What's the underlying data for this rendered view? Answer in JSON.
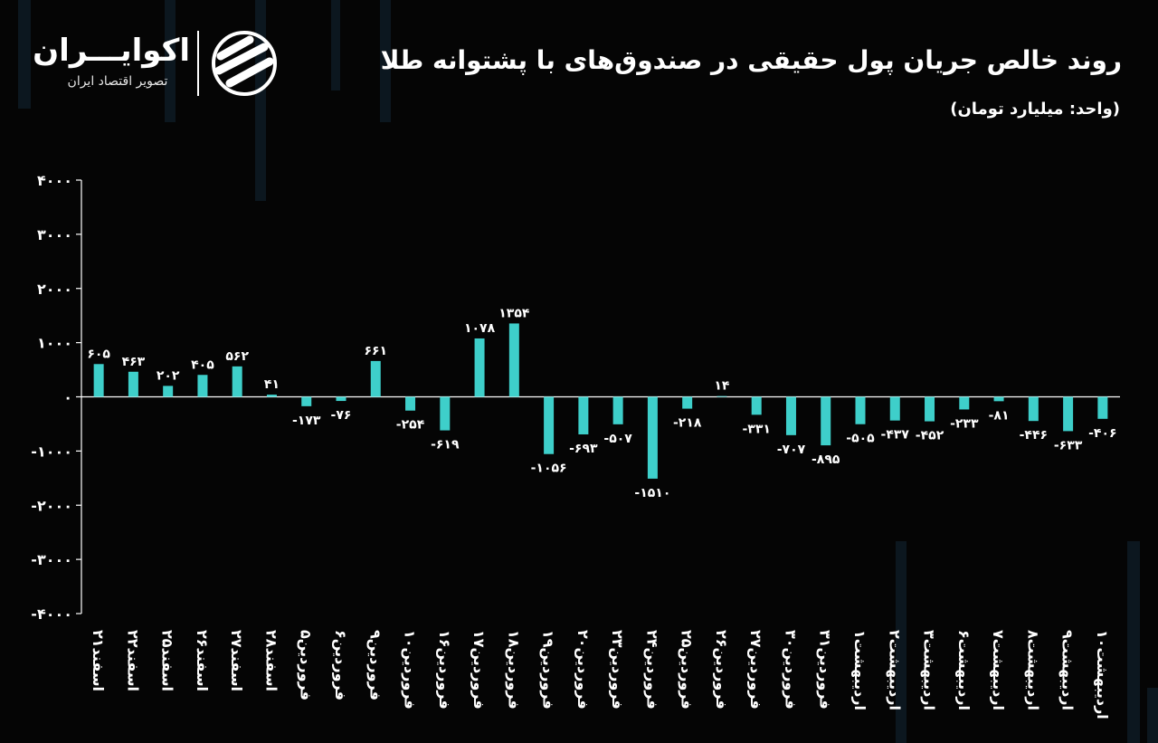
{
  "header": {
    "title": "روند خالص جریان پول حقیقی در صندوق‌های با پشتوانه طلا",
    "unit": "(واحد: میلیارد تومان)"
  },
  "brand": {
    "name": "اکوایـــران",
    "tagline": "تصویر اقتصاد ایران"
  },
  "colors": {
    "background": "#050505",
    "bar": "#3ecfca",
    "axis": "#ffffff",
    "text": "#ffffff"
  },
  "chart_data": {
    "type": "bar",
    "title": "روند خالص جریان پول حقیقی در صندوق‌های با پشتوانه طلا",
    "ylabel": "",
    "xlabel": "",
    "ylim": [
      -4000,
      4000
    ],
    "y_ticks": [
      {
        "value": 4000,
        "label": "۴۰۰۰"
      },
      {
        "value": 3000,
        "label": "۳۰۰۰"
      },
      {
        "value": 2000,
        "label": "۲۰۰۰"
      },
      {
        "value": 1000,
        "label": "۱۰۰۰"
      },
      {
        "value": 0,
        "label": "۰"
      },
      {
        "value": -1000,
        "label": "-۱۰۰۰"
      },
      {
        "value": -2000,
        "label": "-۲۰۰۰"
      },
      {
        "value": -3000,
        "label": "-۳۰۰۰"
      },
      {
        "value": -4000,
        "label": "-۴۰۰۰"
      }
    ],
    "categories": [
      "اسفند۲۱",
      "اسفند۲۲",
      "اسفند۲۵",
      "اسفند۲۶",
      "اسفند۲۷",
      "اسفند۲۸",
      "فروردین۵",
      "فروردین۶",
      "فروردین۹",
      "فروردین۱۰",
      "فروردین۱۶",
      "فروردین۱۷",
      "فروردین۱۸",
      "فروردین۱۹",
      "فروردین۲۰",
      "فروردین۲۳",
      "فروردین۲۴",
      "فروردین۲۵",
      "فروردین۲۶",
      "فروردین۲۷",
      "فروردین۳۰",
      "فروردین۳۱",
      "اردیبهشت۱",
      "اردیبهشت۲",
      "اردیبهشت۳",
      "اردیبهشت۶",
      "اردیبهشت۷",
      "اردیبهشت۸",
      "اردیبهشت۹",
      "اردیبهشت۱۰"
    ],
    "values": [
      605,
      463,
      202,
      405,
      562,
      41,
      -173,
      -76,
      661,
      -254,
      -619,
      1078,
      1354,
      -1056,
      -693,
      -507,
      -1510,
      -218,
      14,
      -331,
      -707,
      -895,
      -505,
      -437,
      -452,
      -233,
      -81,
      -446,
      -633,
      -406
    ],
    "value_labels": [
      "۶۰۵",
      "۴۶۳",
      "۲۰۲",
      "۴۰۵",
      "۵۶۲",
      "۴۱",
      "-۱۷۳",
      "-۷۶",
      "۶۶۱",
      "-۲۵۴",
      "-۶۱۹",
      "۱۰۷۸",
      "۱۳۵۴",
      "-۱۰۵۶",
      "-۶۹۳",
      "-۵۰۷",
      "-۱۵۱۰",
      "-۲۱۸",
      "۱۴",
      "-۳۳۱",
      "-۷۰۷",
      "-۸۹۵",
      "-۵۰۵",
      "-۴۳۷",
      "-۴۵۲",
      "-۲۳۳",
      "-۸۱",
      "-۴۴۶",
      "-۶۳۳",
      "-۴۰۶"
    ],
    "grid": false,
    "legend": "none"
  }
}
